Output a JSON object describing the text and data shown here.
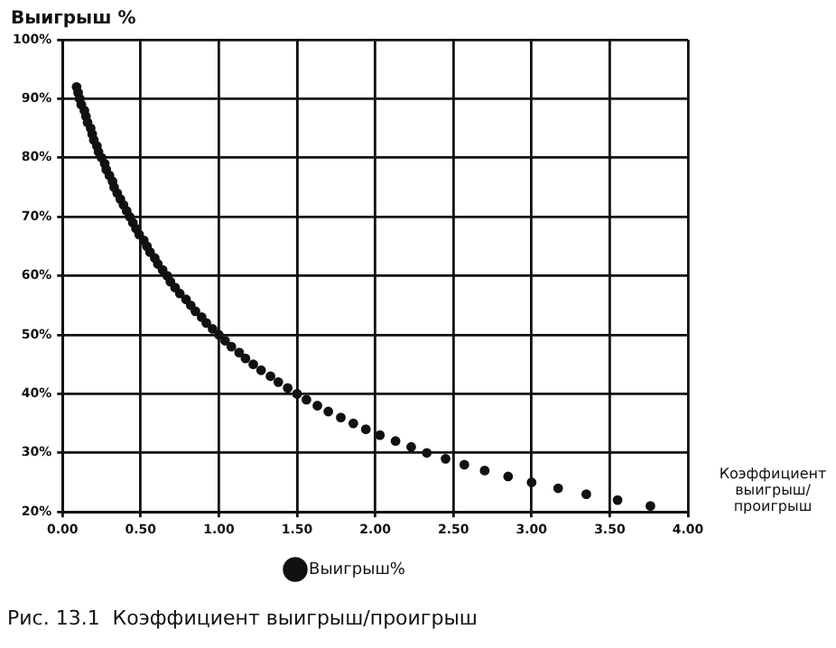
{
  "chart_data": {
    "type": "scatter",
    "title": "Рис. 13.1  Коэффициент выигрыш/проигрыш",
    "xlabel": "Коэффициент выигрыш/ проигрыш",
    "ylabel": "Выигрыш %",
    "xlim": [
      0,
      4
    ],
    "xticks": [
      {
        "value": 0,
        "label": "0.00"
      },
      {
        "value": 0.5,
        "label": "0.50"
      },
      {
        "value": 1,
        "label": "1.00"
      },
      {
        "value": 1.5,
        "label": "1.50"
      },
      {
        "value": 2,
        "label": "2.00"
      },
      {
        "value": 2.5,
        "label": "2.50"
      },
      {
        "value": 3,
        "label": "3.00"
      },
      {
        "value": 3.5,
        "label": "3.50"
      },
      {
        "value": 4,
        "label": "4.00"
      }
    ],
    "ylim": [
      20,
      100
    ],
    "yticks": [
      {
        "value": 20,
        "label": "20%"
      },
      {
        "value": 30,
        "label": "30%"
      },
      {
        "value": 40,
        "label": "40%"
      },
      {
        "value": 50,
        "label": "50%"
      },
      {
        "value": 60,
        "label": "60%"
      },
      {
        "value": 70,
        "label": "70%"
      },
      {
        "value": 80,
        "label": "80%"
      },
      {
        "value": 90,
        "label": "90%"
      },
      {
        "value": 100,
        "label": "100%"
      }
    ],
    "grid": true,
    "legend": "bottom",
    "marker": "circle",
    "series": [
      {
        "name": "Выигрыш%",
        "color": "#111111",
        "x": [
          0.09,
          0.1,
          0.11,
          0.12,
          0.14,
          0.15,
          0.16,
          0.18,
          0.19,
          0.2,
          0.22,
          0.23,
          0.25,
          0.27,
          0.28,
          0.3,
          0.32,
          0.33,
          0.35,
          0.37,
          0.39,
          0.41,
          0.43,
          0.45,
          0.47,
          0.49,
          0.52,
          0.54,
          0.56,
          0.59,
          0.61,
          0.64,
          0.67,
          0.69,
          0.72,
          0.75,
          0.79,
          0.82,
          0.85,
          0.89,
          0.92,
          0.96,
          1.0,
          1.04,
          1.08,
          1.13,
          1.17,
          1.22,
          1.27,
          1.33,
          1.38,
          1.44,
          1.5,
          1.56,
          1.63,
          1.7,
          1.78,
          1.86,
          1.94,
          2.03,
          2.13,
          2.23,
          2.33,
          2.45,
          2.57,
          2.7,
          2.85,
          3.0,
          3.17,
          3.35,
          3.55,
          3.76
        ],
        "values": [
          92,
          91,
          90,
          89,
          88,
          87,
          86,
          85,
          84,
          83,
          82,
          81,
          80,
          79,
          78,
          77,
          76,
          75,
          74,
          73,
          72,
          71,
          70,
          69,
          68,
          67,
          66,
          65,
          64,
          63,
          62,
          61,
          60,
          59,
          58,
          57,
          56,
          55,
          54,
          53,
          52,
          51,
          50,
          49,
          48,
          47,
          46,
          45,
          44,
          43,
          42,
          41,
          40,
          39,
          38,
          37,
          36,
          35,
          34,
          33,
          32,
          31,
          30,
          29,
          28,
          27,
          26,
          25,
          24,
          23,
          22,
          21
        ]
      }
    ]
  }
}
